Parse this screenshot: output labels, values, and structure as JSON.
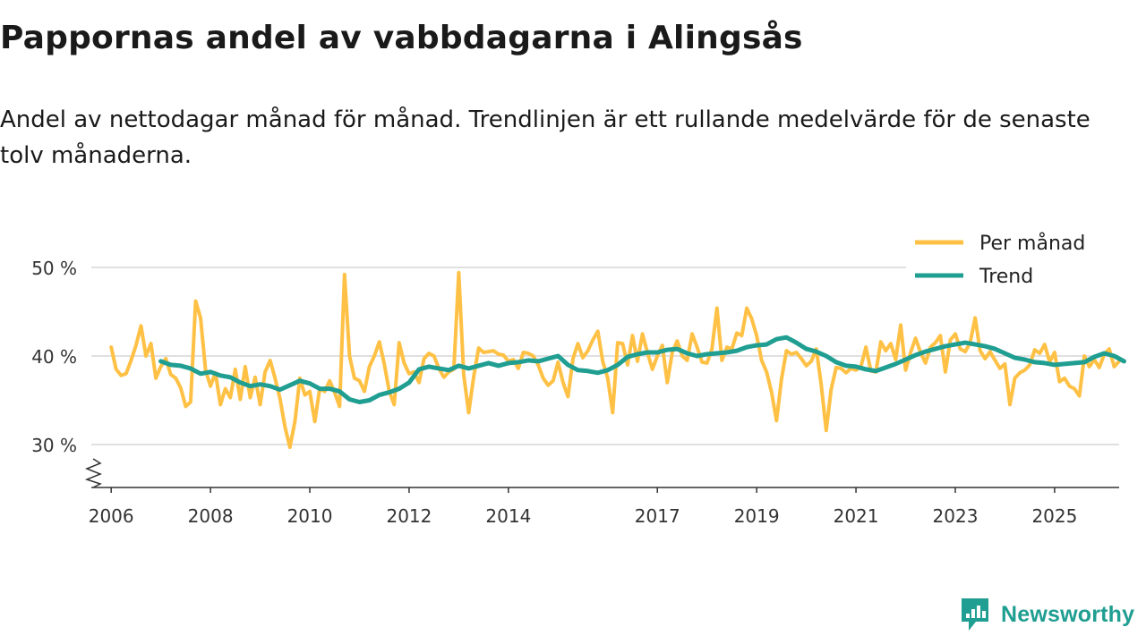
{
  "page": {
    "title": "Pappornas andel av vabbdagarna i Alingsås",
    "subtitle": "Andel av nettodagar månad för månad. Trendlinjen är ett rullande medelvärde för de senaste tolv månaderna."
  },
  "brand": {
    "name": "Newsworthy",
    "icon": "newsworthy-logo-icon",
    "color": "#1f9e91"
  },
  "chart_data": {
    "type": "line",
    "title": "Pappornas andel av vabbdagarna i Alingsås",
    "xlabel": "",
    "ylabel": "",
    "ylim": [
      25,
      50
    ],
    "xlim": [
      2005.6,
      2026.3
    ],
    "yticks": [
      30,
      40,
      50
    ],
    "ytick_labels": [
      "30 %",
      "40 %",
      "50 %"
    ],
    "xticks": [
      2006,
      2008,
      2010,
      2012,
      2014,
      2017,
      2019,
      2021,
      2023,
      2025
    ],
    "xtick_labels": [
      "2006",
      "2008",
      "2010",
      "2012",
      "2014",
      "2017",
      "2019",
      "2021",
      "2023",
      "2025"
    ],
    "grid": true,
    "axis_break": true,
    "legend_position": "top-right",
    "series": [
      {
        "name": "Per månad",
        "color": "#ffc145",
        "points": [
          [
            2006.0,
            41.0
          ],
          [
            2006.1,
            38.5
          ],
          [
            2006.2,
            37.8
          ],
          [
            2006.3,
            38.0
          ],
          [
            2006.4,
            39.5
          ],
          [
            2006.5,
            41.2
          ],
          [
            2006.6,
            43.4
          ],
          [
            2006.7,
            40.0
          ],
          [
            2006.8,
            41.4
          ],
          [
            2006.9,
            37.5
          ],
          [
            2007.0,
            38.8
          ],
          [
            2007.1,
            39.7
          ],
          [
            2007.2,
            37.9
          ],
          [
            2007.3,
            37.5
          ],
          [
            2007.4,
            36.4
          ],
          [
            2007.5,
            34.3
          ],
          [
            2007.6,
            34.8
          ],
          [
            2007.7,
            46.2
          ],
          [
            2007.8,
            44.3
          ],
          [
            2007.9,
            38.4
          ],
          [
            2008.0,
            36.6
          ],
          [
            2008.1,
            38.1
          ],
          [
            2008.2,
            34.5
          ],
          [
            2008.3,
            36.3
          ],
          [
            2008.4,
            35.3
          ],
          [
            2008.5,
            38.5
          ],
          [
            2008.6,
            35.1
          ],
          [
            2008.7,
            38.8
          ],
          [
            2008.8,
            35.3
          ],
          [
            2008.9,
            37.6
          ],
          [
            2009.0,
            34.5
          ],
          [
            2009.1,
            38.2
          ],
          [
            2009.2,
            39.5
          ],
          [
            2009.3,
            37.5
          ],
          [
            2009.4,
            35.2
          ],
          [
            2009.5,
            32.0
          ],
          [
            2009.6,
            29.7
          ],
          [
            2009.7,
            32.6
          ],
          [
            2009.8,
            37.5
          ],
          [
            2009.9,
            35.6
          ],
          [
            2010.0,
            36.0
          ],
          [
            2010.1,
            32.6
          ],
          [
            2010.2,
            36.3
          ],
          [
            2010.3,
            36.0
          ],
          [
            2010.4,
            37.2
          ],
          [
            2010.5,
            35.9
          ],
          [
            2010.6,
            34.3
          ],
          [
            2010.7,
            49.2
          ],
          [
            2010.8,
            40.0
          ],
          [
            2010.9,
            37.5
          ],
          [
            2011.0,
            37.2
          ],
          [
            2011.1,
            36.0
          ],
          [
            2011.2,
            38.8
          ],
          [
            2011.3,
            40.0
          ],
          [
            2011.4,
            41.6
          ],
          [
            2011.5,
            39.1
          ],
          [
            2011.6,
            36.0
          ],
          [
            2011.7,
            34.5
          ],
          [
            2011.8,
            41.5
          ],
          [
            2011.9,
            39.2
          ],
          [
            2012.0,
            38.0
          ],
          [
            2012.1,
            38.2
          ],
          [
            2012.2,
            37.0
          ],
          [
            2012.3,
            39.7
          ],
          [
            2012.4,
            40.3
          ],
          [
            2012.5,
            40.0
          ],
          [
            2012.6,
            38.6
          ],
          [
            2012.7,
            37.6
          ],
          [
            2012.8,
            38.2
          ],
          [
            2012.9,
            38.5
          ],
          [
            2013.0,
            49.4
          ],
          [
            2013.1,
            37.9
          ],
          [
            2013.2,
            33.6
          ],
          [
            2013.3,
            37.6
          ],
          [
            2013.4,
            40.9
          ],
          [
            2013.5,
            40.4
          ],
          [
            2013.6,
            40.5
          ],
          [
            2013.7,
            40.6
          ],
          [
            2013.8,
            40.2
          ],
          [
            2013.9,
            40.1
          ],
          [
            2014.0,
            39.4
          ],
          [
            2014.1,
            39.6
          ],
          [
            2014.2,
            38.6
          ],
          [
            2014.3,
            40.4
          ],
          [
            2014.4,
            40.3
          ],
          [
            2014.5,
            40.0
          ],
          [
            2014.6,
            39.0
          ],
          [
            2014.7,
            37.5
          ],
          [
            2014.8,
            36.7
          ],
          [
            2014.9,
            37.2
          ],
          [
            2015.0,
            39.3
          ],
          [
            2015.1,
            37.0
          ],
          [
            2015.2,
            35.4
          ],
          [
            2015.3,
            39.7
          ],
          [
            2015.4,
            41.4
          ],
          [
            2015.5,
            39.8
          ],
          [
            2015.6,
            40.6
          ],
          [
            2015.7,
            41.8
          ],
          [
            2015.8,
            42.8
          ],
          [
            2015.9,
            39.4
          ],
          [
            2016.0,
            37.5
          ],
          [
            2016.1,
            33.6
          ],
          [
            2016.2,
            41.5
          ],
          [
            2016.3,
            41.4
          ],
          [
            2016.4,
            39.0
          ],
          [
            2016.5,
            42.3
          ],
          [
            2016.6,
            39.4
          ],
          [
            2016.7,
            42.5
          ],
          [
            2016.8,
            40.4
          ],
          [
            2016.9,
            38.5
          ],
          [
            2017.0,
            40.0
          ],
          [
            2017.1,
            41.2
          ],
          [
            2017.2,
            37.0
          ],
          [
            2017.3,
            40.4
          ],
          [
            2017.4,
            41.7
          ],
          [
            2017.5,
            40.0
          ],
          [
            2017.6,
            39.5
          ],
          [
            2017.7,
            42.5
          ],
          [
            2017.8,
            41.0
          ],
          [
            2017.9,
            39.3
          ],
          [
            2018.0,
            39.2
          ],
          [
            2018.1,
            40.8
          ],
          [
            2018.2,
            45.4
          ],
          [
            2018.3,
            39.5
          ],
          [
            2018.4,
            41.0
          ],
          [
            2018.5,
            40.8
          ],
          [
            2018.6,
            42.6
          ],
          [
            2018.7,
            42.3
          ],
          [
            2018.8,
            45.4
          ],
          [
            2018.9,
            44.2
          ],
          [
            2019.0,
            42.3
          ],
          [
            2019.1,
            39.5
          ],
          [
            2019.2,
            38.2
          ],
          [
            2019.3,
            35.9
          ],
          [
            2019.4,
            32.7
          ],
          [
            2019.5,
            37.4
          ],
          [
            2019.6,
            40.6
          ],
          [
            2019.7,
            40.2
          ],
          [
            2019.8,
            40.4
          ],
          [
            2019.9,
            39.7
          ],
          [
            2020.0,
            38.9
          ],
          [
            2020.1,
            39.4
          ],
          [
            2020.2,
            40.8
          ],
          [
            2020.3,
            36.8
          ],
          [
            2020.4,
            31.6
          ],
          [
            2020.5,
            36.2
          ],
          [
            2020.6,
            38.7
          ],
          [
            2020.7,
            38.6
          ],
          [
            2020.8,
            38.1
          ],
          [
            2020.9,
            38.6
          ],
          [
            2021.0,
            38.4
          ],
          [
            2021.1,
            38.8
          ],
          [
            2021.2,
            41.0
          ],
          [
            2021.3,
            38.3
          ],
          [
            2021.4,
            38.2
          ],
          [
            2021.5,
            41.6
          ],
          [
            2021.6,
            40.6
          ],
          [
            2021.7,
            41.4
          ],
          [
            2021.8,
            39.6
          ],
          [
            2021.9,
            43.5
          ],
          [
            2022.0,
            38.4
          ],
          [
            2022.1,
            40.4
          ],
          [
            2022.2,
            42.0
          ],
          [
            2022.3,
            40.4
          ],
          [
            2022.4,
            39.2
          ],
          [
            2022.5,
            41.0
          ],
          [
            2022.6,
            41.5
          ],
          [
            2022.7,
            42.3
          ],
          [
            2022.8,
            38.2
          ],
          [
            2022.9,
            41.8
          ],
          [
            2023.0,
            42.5
          ],
          [
            2023.1,
            40.8
          ],
          [
            2023.2,
            40.5
          ],
          [
            2023.3,
            41.5
          ],
          [
            2023.4,
            44.3
          ],
          [
            2023.5,
            40.6
          ],
          [
            2023.6,
            39.7
          ],
          [
            2023.7,
            40.5
          ],
          [
            2023.8,
            39.5
          ],
          [
            2023.9,
            38.6
          ],
          [
            2024.0,
            39.1
          ],
          [
            2024.1,
            34.5
          ],
          [
            2024.2,
            37.5
          ],
          [
            2024.3,
            38.1
          ],
          [
            2024.4,
            38.4
          ],
          [
            2024.5,
            39.0
          ],
          [
            2024.6,
            40.7
          ],
          [
            2024.7,
            40.3
          ],
          [
            2024.8,
            41.3
          ],
          [
            2024.9,
            39.3
          ],
          [
            2025.0,
            40.4
          ],
          [
            2025.1,
            37.1
          ],
          [
            2025.2,
            37.5
          ],
          [
            2025.3,
            36.6
          ],
          [
            2025.4,
            36.3
          ],
          [
            2025.5,
            35.5
          ],
          [
            2025.6,
            40.0
          ],
          [
            2025.7,
            38.8
          ],
          [
            2025.8,
            39.6
          ],
          [
            2025.9,
            38.7
          ],
          [
            2026.0,
            40.2
          ],
          [
            2026.1,
            40.8
          ],
          [
            2026.2,
            38.8
          ],
          [
            2026.3,
            39.4
          ]
        ]
      },
      {
        "name": "Trend",
        "color": "#1f9e91",
        "points": [
          [
            2007.0,
            39.4
          ],
          [
            2007.2,
            39.0
          ],
          [
            2007.4,
            38.9
          ],
          [
            2007.6,
            38.6
          ],
          [
            2007.8,
            38.0
          ],
          [
            2008.0,
            38.2
          ],
          [
            2008.2,
            37.8
          ],
          [
            2008.4,
            37.6
          ],
          [
            2008.6,
            37.0
          ],
          [
            2008.8,
            36.6
          ],
          [
            2009.0,
            36.8
          ],
          [
            2009.2,
            36.6
          ],
          [
            2009.4,
            36.2
          ],
          [
            2009.6,
            36.7
          ],
          [
            2009.8,
            37.2
          ],
          [
            2010.0,
            36.9
          ],
          [
            2010.2,
            36.3
          ],
          [
            2010.4,
            36.3
          ],
          [
            2010.6,
            36.0
          ],
          [
            2010.8,
            35.1
          ],
          [
            2011.0,
            34.8
          ],
          [
            2011.2,
            35.0
          ],
          [
            2011.4,
            35.6
          ],
          [
            2011.6,
            35.9
          ],
          [
            2011.8,
            36.3
          ],
          [
            2012.0,
            37.0
          ],
          [
            2012.2,
            38.5
          ],
          [
            2012.4,
            38.8
          ],
          [
            2012.6,
            38.6
          ],
          [
            2012.8,
            38.4
          ],
          [
            2013.0,
            38.9
          ],
          [
            2013.2,
            38.6
          ],
          [
            2013.4,
            38.9
          ],
          [
            2013.6,
            39.2
          ],
          [
            2013.8,
            38.9
          ],
          [
            2014.0,
            39.2
          ],
          [
            2014.2,
            39.3
          ],
          [
            2014.4,
            39.5
          ],
          [
            2014.6,
            39.4
          ],
          [
            2014.8,
            39.7
          ],
          [
            2015.0,
            40.0
          ],
          [
            2015.2,
            39.0
          ],
          [
            2015.4,
            38.4
          ],
          [
            2015.6,
            38.3
          ],
          [
            2015.8,
            38.1
          ],
          [
            2016.0,
            38.4
          ],
          [
            2016.2,
            39.0
          ],
          [
            2016.4,
            39.9
          ],
          [
            2016.6,
            40.2
          ],
          [
            2016.8,
            40.4
          ],
          [
            2017.0,
            40.4
          ],
          [
            2017.2,
            40.7
          ],
          [
            2017.4,
            40.8
          ],
          [
            2017.6,
            40.3
          ],
          [
            2017.8,
            40.0
          ],
          [
            2018.0,
            40.2
          ],
          [
            2018.2,
            40.3
          ],
          [
            2018.4,
            40.4
          ],
          [
            2018.6,
            40.6
          ],
          [
            2018.8,
            41.0
          ],
          [
            2019.0,
            41.2
          ],
          [
            2019.2,
            41.3
          ],
          [
            2019.4,
            41.9
          ],
          [
            2019.6,
            42.1
          ],
          [
            2019.8,
            41.5
          ],
          [
            2020.0,
            40.8
          ],
          [
            2020.2,
            40.5
          ],
          [
            2020.4,
            40.0
          ],
          [
            2020.6,
            39.3
          ],
          [
            2020.8,
            38.9
          ],
          [
            2021.0,
            38.8
          ],
          [
            2021.2,
            38.5
          ],
          [
            2021.4,
            38.3
          ],
          [
            2021.6,
            38.7
          ],
          [
            2021.8,
            39.1
          ],
          [
            2022.0,
            39.6
          ],
          [
            2022.2,
            40.1
          ],
          [
            2022.4,
            40.5
          ],
          [
            2022.6,
            40.8
          ],
          [
            2022.8,
            41.1
          ],
          [
            2023.0,
            41.3
          ],
          [
            2023.2,
            41.5
          ],
          [
            2023.4,
            41.3
          ],
          [
            2023.6,
            41.1
          ],
          [
            2023.8,
            40.8
          ],
          [
            2024.0,
            40.3
          ],
          [
            2024.2,
            39.8
          ],
          [
            2024.4,
            39.6
          ],
          [
            2024.6,
            39.3
          ],
          [
            2024.8,
            39.2
          ],
          [
            2025.0,
            39.0
          ],
          [
            2025.2,
            39.1
          ],
          [
            2025.4,
            39.2
          ],
          [
            2025.6,
            39.3
          ],
          [
            2025.8,
            39.9
          ],
          [
            2026.0,
            40.3
          ],
          [
            2026.2,
            40.0
          ],
          [
            2026.4,
            39.4
          ]
        ]
      }
    ]
  }
}
